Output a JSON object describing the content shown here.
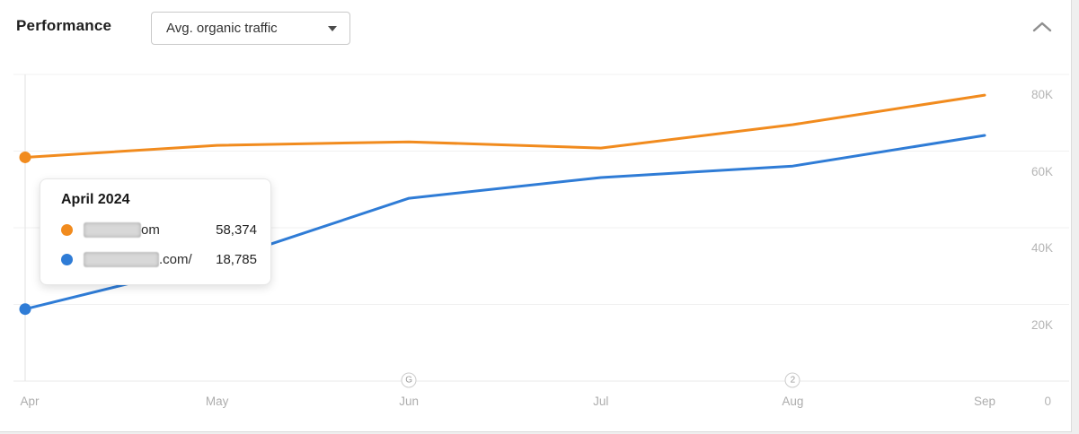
{
  "header": {
    "title": "Performance",
    "metric_dropdown": {
      "label": "Avg. organic traffic"
    }
  },
  "chart_data": {
    "type": "line",
    "title": "Avg. organic traffic over time",
    "categories": [
      "Apr",
      "May",
      "Jun",
      "Jul",
      "Aug",
      "Sep"
    ],
    "series": [
      {
        "name": "redacted-domain-om",
        "color": "#F18B1E",
        "values": [
          58374,
          61500,
          62400,
          60800,
          66900,
          74600
        ]
      },
      {
        "name": "redacted-domain-com",
        "color": "#2F7CD6",
        "values": [
          18785,
          31100,
          47700,
          53100,
          56100,
          64100
        ]
      }
    ],
    "y_ticks": [
      {
        "label": "80K",
        "value": 80000
      },
      {
        "label": "60K",
        "value": 60000
      },
      {
        "label": "40K",
        "value": 40000
      },
      {
        "label": "20K",
        "value": 20000
      }
    ],
    "origin_tick_label": "0",
    "ylim": [
      0,
      80000
    ],
    "grid": true,
    "legend_position": "none",
    "hovered_category": "Apr",
    "annotations": [
      {
        "category_index": 2,
        "badge": "G"
      },
      {
        "category_index": 4,
        "badge": "2"
      }
    ]
  },
  "tooltip": {
    "title": "April 2024",
    "rows": [
      {
        "dot_color": "#F18B1E",
        "domain_redacted": true,
        "domain_visible_suffix": "om",
        "value": "58,374"
      },
      {
        "dot_color": "#2F7CD6",
        "domain_redacted": true,
        "domain_visible_suffix": ".com/",
        "value": "18,785"
      }
    ]
  },
  "colors": {
    "orange_series": "#F18B1E",
    "blue_series": "#2F7CD6",
    "gridline": "#f0f0f0",
    "axis_line": "#e8e8e8",
    "axis_text": "#b0b0b0"
  }
}
